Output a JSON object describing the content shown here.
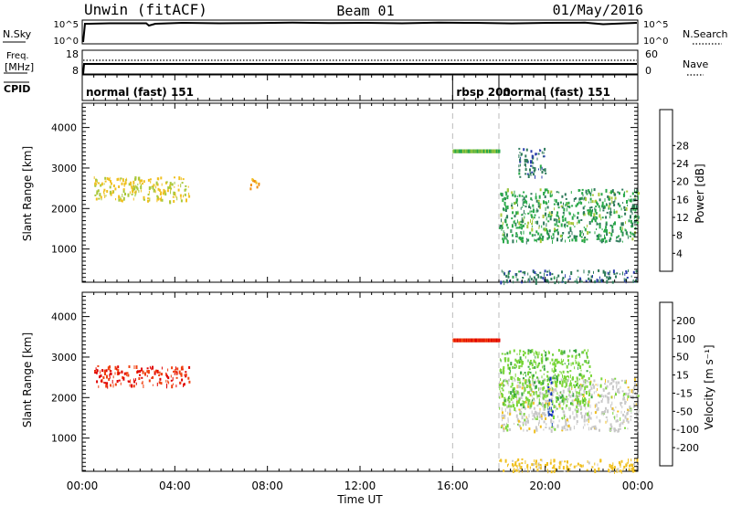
{
  "header": {
    "site": "Unwin (fitACF)",
    "beam": "Beam 01",
    "date": "01/May/2016"
  },
  "nsky": {
    "label": "N.Sky",
    "right_label": "N.Search",
    "ticks_left": [
      "10^5",
      "10^0"
    ],
    "ticks_right": [
      "10^5",
      "10^0"
    ]
  },
  "freq": {
    "label_line1": "Freq.",
    "label_line2": "[MHz]",
    "ticks_left": [
      "18",
      "8"
    ],
    "right_label": "Nave",
    "ticks_right": [
      "60",
      "0"
    ]
  },
  "cpid": {
    "label": "CPID",
    "segments": [
      {
        "name": "normal (fast) 151",
        "start_hour": 0
      },
      {
        "name": "rbsp 200",
        "start_hour": 16
      },
      {
        "name": "normal (fast) 151",
        "start_hour": 18
      }
    ]
  },
  "panels": {
    "power": {
      "ylabel": "Slant Range [km]",
      "cbar_label": "Power [dB]"
    },
    "velocity": {
      "ylabel": "Slant Range [km]",
      "cbar_label": "Velocity [m s⁻¹]"
    }
  },
  "xaxis_label": "Time UT",
  "colors": {
    "power": [
      "#0000ee",
      "#2c3fae",
      "#2d7a5a",
      "#2aa84a",
      "#a8c83a",
      "#f0c020",
      "#f08e10",
      "#ee3b10",
      "#e00000"
    ],
    "velocity": [
      "#e00000",
      "#f04010",
      "#f88a10",
      "#f0c020",
      "#c8c8c8",
      "#7ad63a",
      "#3aa840",
      "#2050b0",
      "#1030c0"
    ]
  },
  "chart_data": [
    {
      "type": "heatmap",
      "title": "Power",
      "xlabel": "Time UT",
      "ylabel": "Slant Range [km]",
      "xlim": [
        0,
        24
      ],
      "ylim": [
        180,
        4600
      ],
      "x_ticks": [
        "00:00",
        "04:00",
        "08:00",
        "12:00",
        "16:00",
        "20:00",
        "00:00"
      ],
      "y_ticks": [
        1000,
        2000,
        3000,
        4000
      ],
      "colorbar": {
        "label": "Power [dB]",
        "range": [
          0,
          32
        ],
        "ticks": [
          4,
          8,
          12,
          16,
          20,
          24,
          28
        ]
      },
      "features": [
        {
          "time_start": 0.5,
          "time_end": 4.6,
          "range_start": 2200,
          "range_end": 2800,
          "value": 18
        },
        {
          "time_start": 7.2,
          "time_end": 7.7,
          "range_start": 2500,
          "range_end": 2750,
          "value": 22
        },
        {
          "time_start": 16.0,
          "time_end": 18.0,
          "range_start": 3400,
          "range_end": 3460,
          "value": 14
        },
        {
          "time_start": 18.0,
          "time_end": 24.0,
          "range_start": 1200,
          "range_end": 2500,
          "value": 12
        },
        {
          "time_start": 18.8,
          "time_end": 20.0,
          "range_start": 2800,
          "range_end": 3500,
          "value": 8
        },
        {
          "time_start": 18.0,
          "time_end": 24.0,
          "range_start": 200,
          "range_end": 500,
          "value": 8
        }
      ]
    },
    {
      "type": "heatmap",
      "title": "Velocity",
      "xlabel": "Time UT",
      "ylabel": "Slant Range [km]",
      "xlim": [
        0,
        24
      ],
      "ylim": [
        180,
        4600
      ],
      "x_ticks": [
        "00:00",
        "04:00",
        "08:00",
        "12:00",
        "16:00",
        "20:00",
        "00:00"
      ],
      "y_ticks": [
        1000,
        2000,
        3000,
        4000
      ],
      "colorbar": {
        "label": "Velocity [m s⁻¹]",
        "ticks": [
          200,
          100,
          50,
          15,
          -15,
          -50,
          -100,
          -200
        ]
      },
      "features": [
        {
          "time_start": 0.5,
          "time_end": 4.6,
          "range_start": 2300,
          "range_end": 2800,
          "value": -200
        },
        {
          "time_start": 16.0,
          "time_end": 18.0,
          "range_start": 3400,
          "range_end": 3460,
          "value": -200
        },
        {
          "time_start": 18.0,
          "time_end": 24.0,
          "range_start": 1200,
          "range_end": 2500,
          "value": 0
        },
        {
          "time_start": 18.0,
          "time_end": 22.0,
          "range_start": 1800,
          "range_end": 3200,
          "value": 40
        },
        {
          "time_start": 20.1,
          "time_end": 20.3,
          "range_start": 1300,
          "range_end": 2600,
          "value": 200
        },
        {
          "time_start": 18.0,
          "time_end": 24.0,
          "range_start": 200,
          "range_end": 500,
          "value": -30
        }
      ]
    }
  ]
}
